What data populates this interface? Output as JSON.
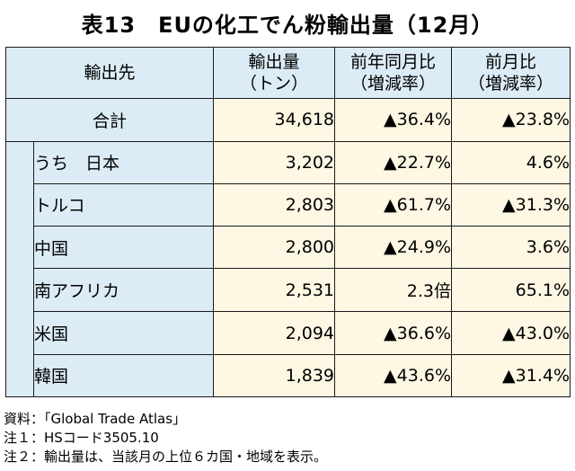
{
  "title": "表13　EUの化工でん粉輸出量（12月）",
  "headers": {
    "dest": "輸出先",
    "qty_line1": "輸出量",
    "qty_line2": "（トン）",
    "yoy_line1": "前年同月比",
    "yoy_line2": "（増減率）",
    "mom_line1": "前月比",
    "mom_line2": "（増減率）"
  },
  "rows": [
    {
      "name": "合計",
      "qty": "34,618",
      "yoy": "▲36.4%",
      "mom": "▲23.8%"
    },
    {
      "name": "うち　日本",
      "qty": "3,202",
      "yoy": "▲22.7%",
      "mom": "4.6%"
    },
    {
      "name": "トルコ",
      "qty": "2,803",
      "yoy": "▲61.7%",
      "mom": "▲31.3%"
    },
    {
      "name": "中国",
      "qty": "2,800",
      "yoy": "▲24.9%",
      "mom": "3.6%"
    },
    {
      "name": "南アフリカ",
      "qty": "2,531",
      "yoy": "2.3倍",
      "mom": "65.1%"
    },
    {
      "name": "米国",
      "qty": "2,094",
      "yoy": "▲36.6%",
      "mom": "▲43.0%"
    },
    {
      "name": "韓国",
      "qty": "1,839",
      "yoy": "▲43.6%",
      "mom": "▲31.4%"
    }
  ],
  "notes": [
    "資料：「Global Trade Atlas」",
    "注１：HSコード3505.10",
    "注２：輸出量は、当該月の上位６カ国・地域を表示。"
  ]
}
